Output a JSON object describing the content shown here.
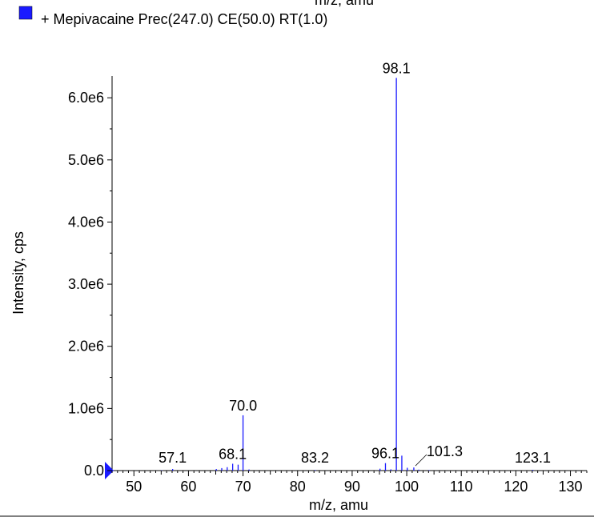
{
  "legend": {
    "swatch_color": "#1a1aff",
    "label": "+ Mepivacaine Prec(247.0) CE(50.0) RT(1.0)",
    "clipped_top_label": "m/z, amu"
  },
  "chart_data": {
    "type": "bar",
    "title": "",
    "xlabel": "m/z, amu",
    "ylabel": "Intensity, cps",
    "xlim": [
      46,
      133
    ],
    "ylim": [
      0,
      6350000
    ],
    "x_ticks": [
      "50",
      "60",
      "70",
      "80",
      "90",
      "100",
      "110",
      "120",
      "130"
    ],
    "y_ticks": [
      "0.0",
      "1.0e6",
      "2.0e6",
      "3.0e6",
      "4.0e6",
      "5.0e6",
      "6.0e6"
    ],
    "series_color": "#1a1aff",
    "peaks": [
      {
        "x": 55.1,
        "y": 6000
      },
      {
        "x": 57.1,
        "y": 25000
      },
      {
        "x": 65.1,
        "y": 25000
      },
      {
        "x": 66.1,
        "y": 40000
      },
      {
        "x": 67.1,
        "y": 55000
      },
      {
        "x": 68.1,
        "y": 110000
      },
      {
        "x": 69.1,
        "y": 95000
      },
      {
        "x": 70.0,
        "y": 890000
      },
      {
        "x": 71.1,
        "y": 18000
      },
      {
        "x": 83.2,
        "y": 9000
      },
      {
        "x": 95.1,
        "y": 30000
      },
      {
        "x": 96.1,
        "y": 120000
      },
      {
        "x": 97.1,
        "y": 20000
      },
      {
        "x": 98.1,
        "y": 6320000
      },
      {
        "x": 99.1,
        "y": 240000
      },
      {
        "x": 100.1,
        "y": 45000
      },
      {
        "x": 101.3,
        "y": 50000
      },
      {
        "x": 102.2,
        "y": 15000
      },
      {
        "x": 104.1,
        "y": 8000
      },
      {
        "x": 123.1,
        "y": 12000
      }
    ],
    "peak_labels": [
      {
        "text": "57.1",
        "x": 57.1,
        "y": 25000
      },
      {
        "text": "68.1",
        "x": 68.1,
        "y": 110000
      },
      {
        "text": "70.0",
        "x": 70.0,
        "y": 890000
      },
      {
        "text": "83.2",
        "x": 83.2,
        "y": 9000
      },
      {
        "text": "96.1",
        "x": 96.1,
        "y": 120000
      },
      {
        "text": "98.1",
        "x": 98.1,
        "y": 6320000
      },
      {
        "text": "101.3",
        "x": 101.3,
        "y": 50000
      },
      {
        "text": "123.1",
        "x": 123.1,
        "y": 12000
      }
    ]
  }
}
